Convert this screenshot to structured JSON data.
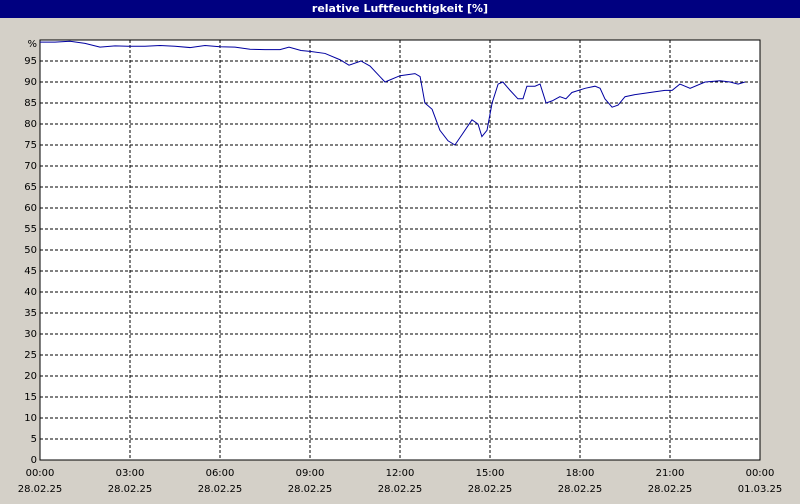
{
  "chart_data": {
    "type": "line",
    "title": "relative Luftfeuchtigkeit [%]",
    "x": [
      0,
      0.5,
      1,
      1.5,
      2,
      2.5,
      3,
      3.5,
      4,
      4.5,
      5,
      5.5,
      6,
      6.5,
      7,
      7.5,
      8,
      8.3,
      8.7,
      9,
      9.5,
      10,
      10.3,
      10.7,
      11,
      11.5,
      12,
      12.5,
      12.67,
      12.83,
      13.07,
      13.33,
      13.6,
      13.83,
      14.07,
      14.4,
      14.6,
      14.73,
      14.9,
      15.07,
      15.27,
      15.43,
      15.67,
      15.93,
      16.1,
      16.23,
      16.5,
      16.67,
      16.87,
      17.07,
      17.33,
      17.53,
      17.73,
      18.17,
      18.5,
      18.67,
      18.83,
      19.07,
      19.27,
      19.5,
      19.83,
      20.33,
      20.83,
      21.07,
      21.33,
      21.67,
      22.17,
      22.67,
      23,
      23.27,
      23.5
    ],
    "series": [
      {
        "name": "relative Luftfeuchtigkeit",
        "color": "#0000a0",
        "values": [
          99.5,
          99.5,
          99.7,
          99.2,
          98.3,
          98.6,
          98.5,
          98.5,
          98.7,
          98.5,
          98.2,
          98.7,
          98.4,
          98.3,
          97.8,
          97.7,
          97.7,
          98.3,
          97.5,
          97.3,
          96.8,
          95.3,
          94,
          95,
          93.8,
          90,
          91.5,
          92,
          91.3,
          85,
          83.5,
          78.5,
          76,
          75,
          77.5,
          81,
          80,
          77,
          78.5,
          85,
          89.5,
          90,
          88,
          86,
          86,
          89,
          89,
          89.5,
          85,
          85.5,
          86.5,
          86,
          87.5,
          88.5,
          89,
          88.5,
          86,
          84,
          84.5,
          86.5,
          87,
          87.5,
          88,
          88,
          89.5,
          88.5,
          90,
          90.3,
          90,
          89.5,
          90
        ]
      }
    ],
    "xlim": [
      0,
      24
    ],
    "xticks": [
      {
        "value": 0,
        "label": "00:00"
      },
      {
        "value": 3,
        "label": "03:00"
      },
      {
        "value": 6,
        "label": "06:00"
      },
      {
        "value": 9,
        "label": "09:00"
      },
      {
        "value": 12,
        "label": "12:00"
      },
      {
        "value": 15,
        "label": "15:00"
      },
      {
        "value": 18,
        "label": "18:00"
      },
      {
        "value": 21,
        "label": "21:00"
      },
      {
        "value": 24,
        "label": "00:00"
      }
    ],
    "xtick_dates": [
      "28.02.25",
      "28.02.25",
      "28.02.25",
      "28.02.25",
      "28.02.25",
      "28.02.25",
      "28.02.25",
      "28.02.25",
      "01.03.25"
    ],
    "ylim": [
      0,
      100
    ],
    "yticks": [
      0,
      5,
      10,
      15,
      20,
      25,
      30,
      35,
      40,
      45,
      50,
      55,
      60,
      65,
      70,
      75,
      80,
      85,
      90,
      95,
      {
        "value": 100,
        "label": "%"
      }
    ],
    "grid": true
  }
}
